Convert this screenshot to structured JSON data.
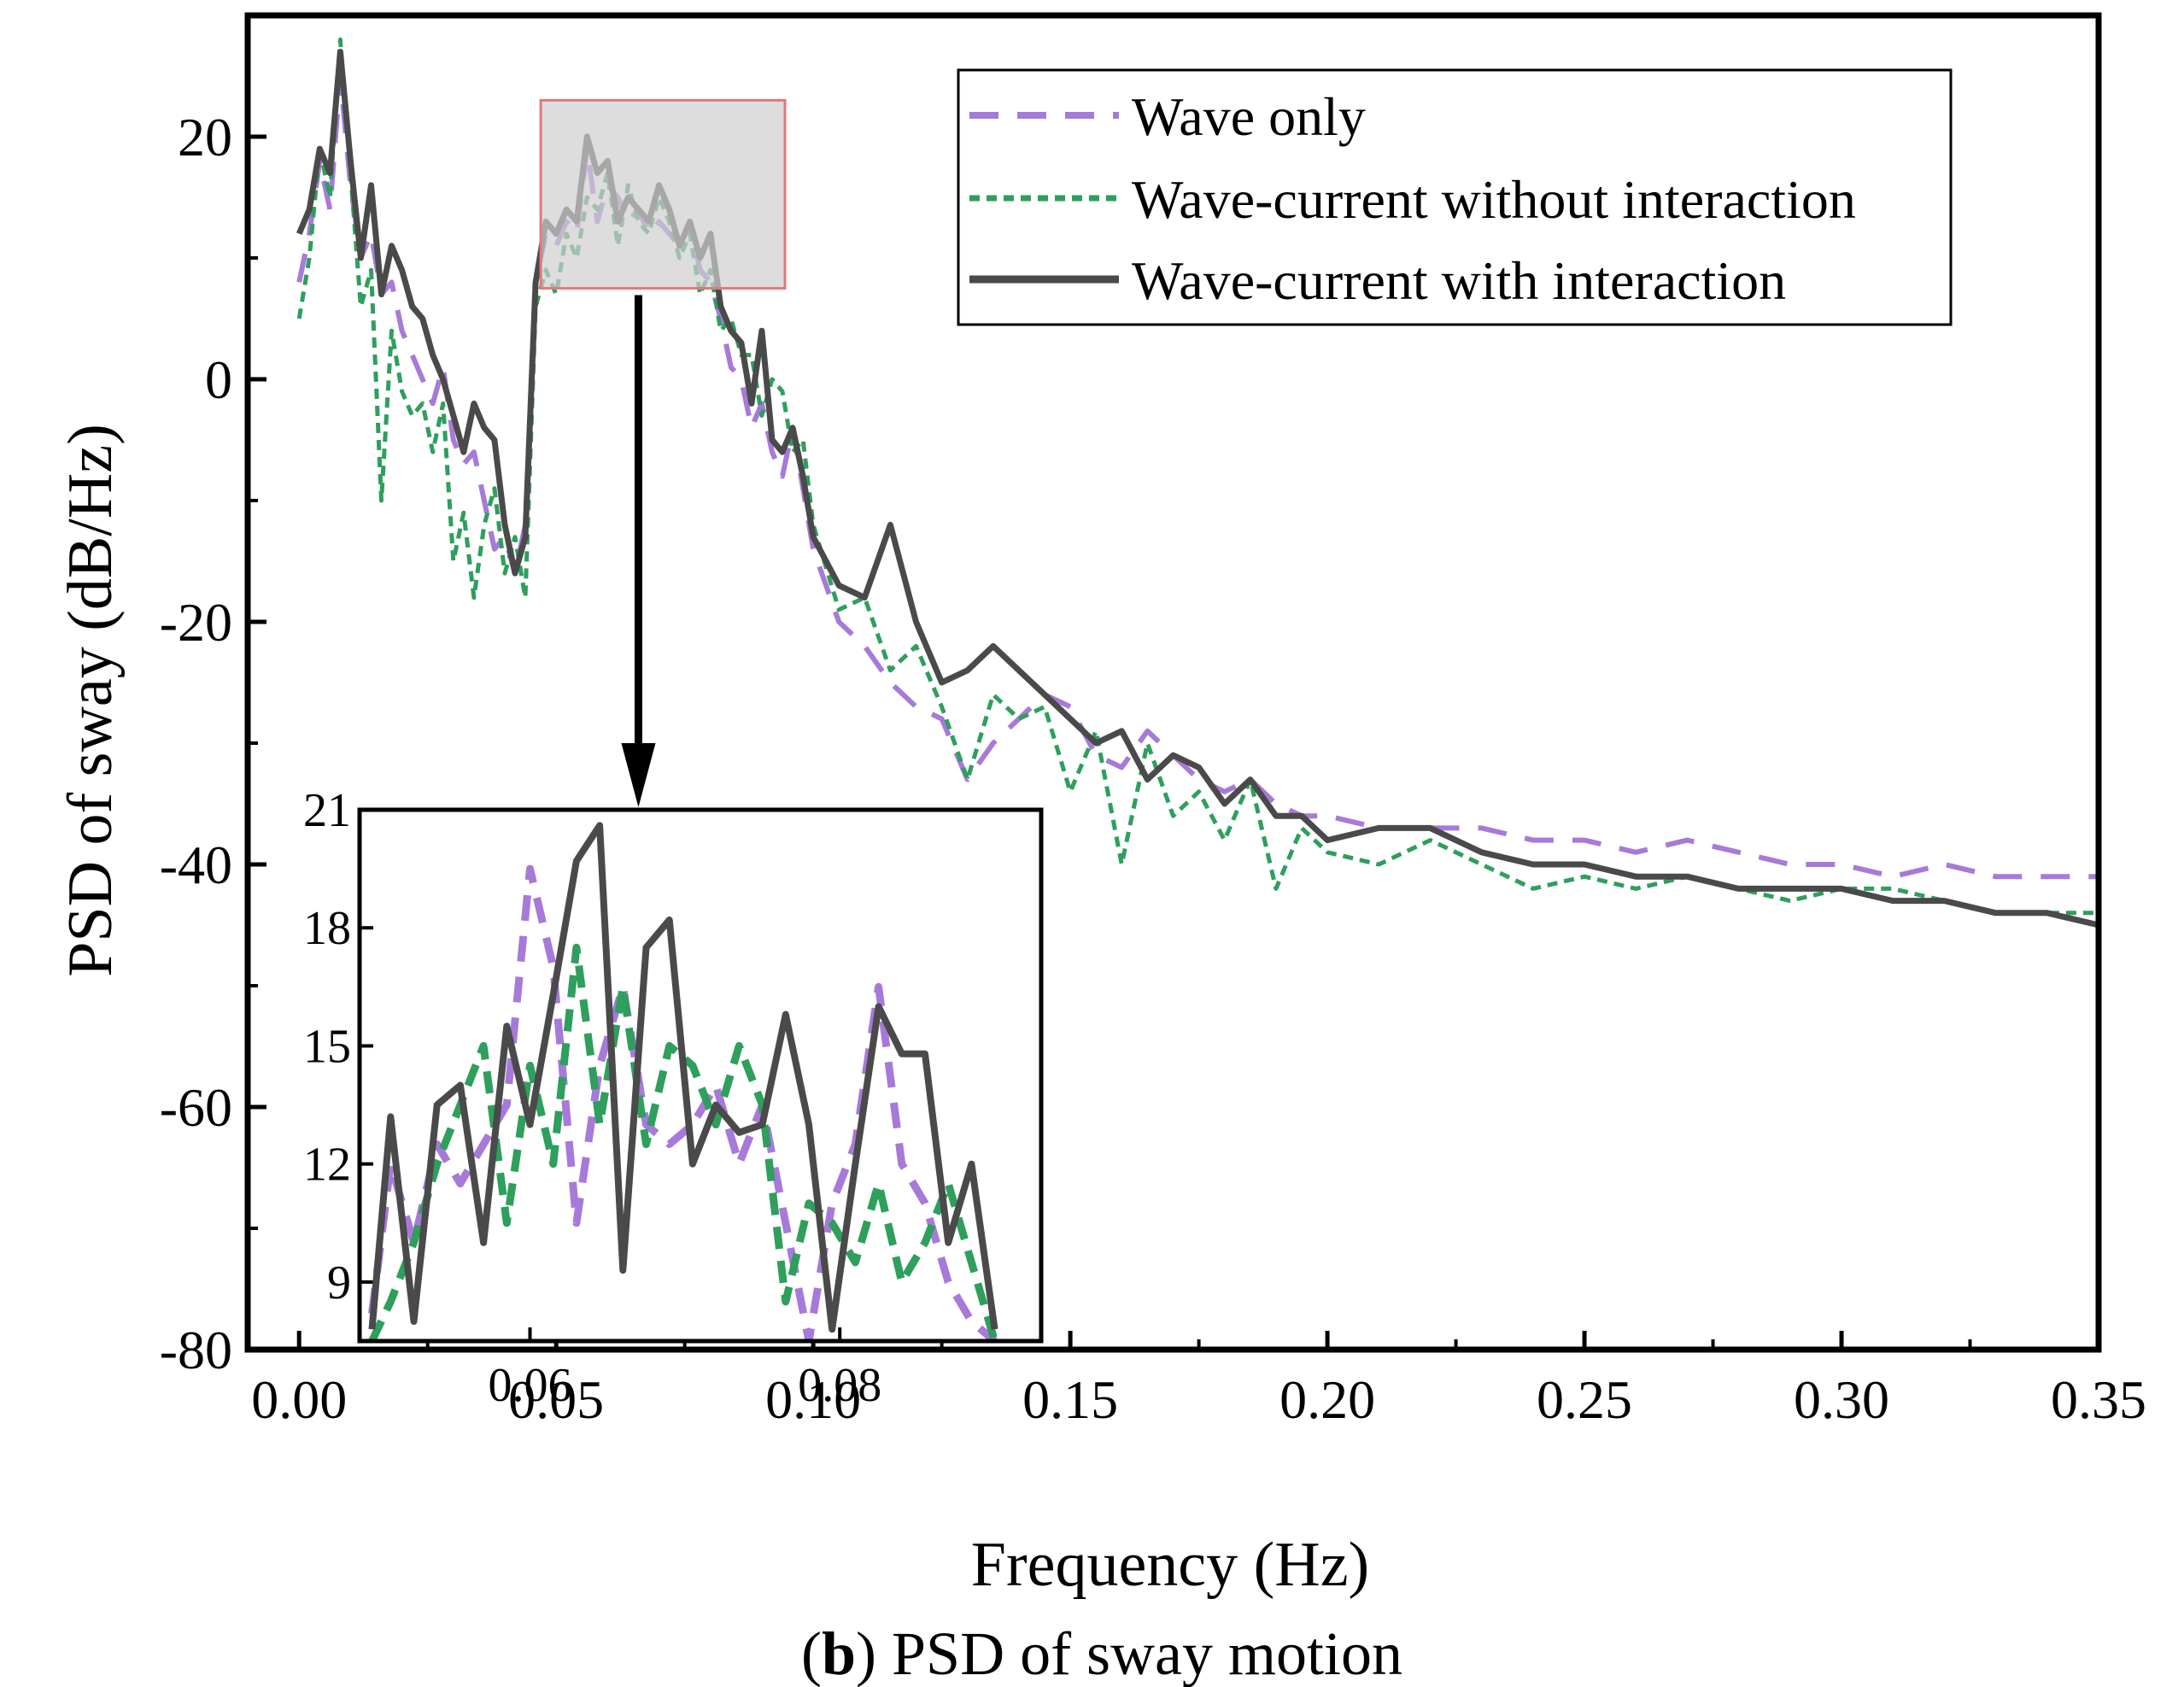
{
  "figure": {
    "caption_letter": "b",
    "caption_text": "PSD of sway motion"
  },
  "chart_data": {
    "type": "line",
    "title": "",
    "xlabel": "Frequency (Hz)",
    "ylabel": "PSD of sway (dB/Hz)",
    "xlim": [
      -0.01,
      0.35
    ],
    "ylim": [
      -80,
      30
    ],
    "x_ticks": [
      0.0,
      0.05,
      0.1,
      0.15,
      0.2,
      0.25,
      0.3,
      0.35
    ],
    "x_tick_labels": [
      "0.00",
      "0.05",
      "0.10",
      "0.15",
      "0.20",
      "0.25",
      "0.30",
      "0.35"
    ],
    "y_ticks": [
      -80,
      -60,
      -40,
      -20,
      0,
      20
    ],
    "y_tick_labels": [
      "-80",
      "-60",
      "-40",
      "-20",
      "0",
      "20"
    ],
    "legend_position": "top-right",
    "series": [
      {
        "name": "Wave only",
        "style": "dashed",
        "color": "#a77ad9",
        "x": [
          0.0,
          0.002,
          0.004,
          0.006,
          0.008,
          0.01,
          0.012,
          0.014,
          0.016,
          0.018,
          0.02,
          0.022,
          0.024,
          0.026,
          0.028,
          0.03,
          0.032,
          0.034,
          0.036,
          0.038,
          0.04,
          0.042,
          0.044,
          0.046,
          0.048,
          0.05,
          0.052,
          0.054,
          0.056,
          0.058,
          0.06,
          0.062,
          0.064,
          0.066,
          0.068,
          0.07,
          0.072,
          0.074,
          0.076,
          0.078,
          0.08,
          0.082,
          0.084,
          0.086,
          0.088,
          0.09,
          0.092,
          0.094,
          0.096,
          0.098,
          0.1,
          0.105,
          0.11,
          0.115,
          0.12,
          0.125,
          0.13,
          0.135,
          0.14,
          0.145,
          0.15,
          0.155,
          0.16,
          0.165,
          0.17,
          0.175,
          0.18,
          0.185,
          0.19,
          0.195,
          0.2,
          0.21,
          0.22,
          0.23,
          0.24,
          0.25,
          0.26,
          0.27,
          0.28,
          0.29,
          0.3,
          0.31,
          0.32,
          0.33,
          0.34,
          0.35
        ],
        "values": [
          8,
          12,
          18,
          14,
          25,
          16,
          10,
          12,
          7,
          8,
          4,
          2,
          0,
          -2,
          1,
          -5,
          -7,
          -6,
          -10,
          -14,
          -13,
          -16,
          -12,
          8,
          12,
          11,
          13,
          12,
          19,
          13,
          16,
          15,
          13,
          14,
          12,
          13,
          12,
          11,
          13,
          9,
          8,
          5,
          1,
          0,
          -4,
          -2,
          -6,
          -8,
          -4,
          -9,
          -14,
          -20,
          -22,
          -25,
          -27,
          -28,
          -33,
          -30,
          -28,
          -26,
          -27,
          -31,
          -32,
          -29,
          -31,
          -33,
          -34,
          -33,
          -35,
          -36,
          -36,
          -37,
          -37,
          -37,
          -38,
          -38,
          -39,
          -38,
          -39,
          -40,
          -40,
          -41,
          -40,
          -41,
          -41,
          -41
        ]
      },
      {
        "name": "Wave-current without interaction",
        "style": "dotted",
        "color": "#2e9f5c",
        "x": [
          0.0,
          0.002,
          0.004,
          0.006,
          0.008,
          0.01,
          0.012,
          0.014,
          0.016,
          0.018,
          0.02,
          0.022,
          0.024,
          0.026,
          0.028,
          0.03,
          0.032,
          0.034,
          0.036,
          0.038,
          0.04,
          0.042,
          0.044,
          0.046,
          0.048,
          0.05,
          0.052,
          0.054,
          0.056,
          0.058,
          0.06,
          0.062,
          0.064,
          0.066,
          0.068,
          0.07,
          0.072,
          0.074,
          0.076,
          0.078,
          0.08,
          0.082,
          0.084,
          0.086,
          0.088,
          0.09,
          0.092,
          0.094,
          0.096,
          0.098,
          0.1,
          0.105,
          0.11,
          0.115,
          0.12,
          0.125,
          0.13,
          0.135,
          0.14,
          0.145,
          0.15,
          0.155,
          0.16,
          0.165,
          0.17,
          0.175,
          0.18,
          0.185,
          0.19,
          0.195,
          0.2,
          0.21,
          0.22,
          0.23,
          0.24,
          0.25,
          0.26,
          0.27,
          0.28,
          0.29,
          0.3,
          0.31,
          0.32,
          0.33,
          0.34,
          0.35
        ],
        "values": [
          5,
          10,
          19,
          15,
          28,
          17,
          6,
          9,
          -10,
          4,
          -1,
          -3,
          -2,
          -6,
          -2,
          -15,
          -11,
          -18,
          -12,
          -9,
          -16,
          -13,
          -18,
          6,
          9,
          7,
          12,
          10,
          15,
          14,
          17,
          11,
          16,
          13,
          12,
          15,
          13,
          10,
          12,
          7,
          9,
          4,
          5,
          2,
          2,
          -3,
          0,
          -1,
          -6,
          -5,
          -12,
          -19,
          -18,
          -24,
          -22,
          -27,
          -33,
          -26,
          -28,
          -27,
          -34,
          -29,
          -40,
          -30,
          -36,
          -34,
          -38,
          -33,
          -42,
          -37,
          -39,
          -40,
          -38,
          -40,
          -42,
          -41,
          -42,
          -41,
          -42,
          -43,
          -42,
          -42,
          -43,
          -44,
          -44,
          -44
        ]
      },
      {
        "name": "Wave-current with interaction",
        "style": "solid",
        "color": "#4a4a4a",
        "x": [
          0.0,
          0.002,
          0.004,
          0.006,
          0.008,
          0.01,
          0.012,
          0.014,
          0.016,
          0.018,
          0.02,
          0.022,
          0.024,
          0.026,
          0.028,
          0.03,
          0.032,
          0.034,
          0.036,
          0.038,
          0.04,
          0.042,
          0.044,
          0.046,
          0.048,
          0.05,
          0.052,
          0.054,
          0.056,
          0.058,
          0.06,
          0.062,
          0.064,
          0.066,
          0.068,
          0.07,
          0.072,
          0.074,
          0.076,
          0.078,
          0.08,
          0.082,
          0.084,
          0.086,
          0.088,
          0.09,
          0.092,
          0.094,
          0.096,
          0.098,
          0.1,
          0.105,
          0.11,
          0.115,
          0.12,
          0.125,
          0.13,
          0.135,
          0.14,
          0.145,
          0.15,
          0.155,
          0.16,
          0.165,
          0.17,
          0.175,
          0.18,
          0.185,
          0.19,
          0.195,
          0.2,
          0.21,
          0.22,
          0.23,
          0.24,
          0.25,
          0.26,
          0.27,
          0.28,
          0.29,
          0.3,
          0.31,
          0.32,
          0.33,
          0.34,
          0.35
        ],
        "values": [
          12,
          14,
          19,
          17,
          27,
          18,
          10,
          16,
          7,
          11,
          9,
          6,
          5,
          2,
          0,
          -3,
          -6,
          -2,
          -4,
          -5,
          -12,
          -16,
          -13,
          8,
          13,
          12,
          14,
          13,
          20,
          17,
          18,
          13,
          15,
          14,
          13,
          16,
          14,
          11,
          13,
          10,
          12,
          6,
          4,
          3,
          -2,
          4,
          -5,
          -6,
          -4,
          -8,
          -13,
          -17,
          -18,
          -12,
          -20,
          -25,
          -24,
          -22,
          -24,
          -26,
          -28,
          -30,
          -29,
          -33,
          -31,
          -32,
          -35,
          -33,
          -36,
          -36,
          -38,
          -37,
          -37,
          -39,
          -40,
          -40,
          -41,
          -41,
          -42,
          -42,
          -42,
          -43,
          -43,
          -44,
          -44,
          -45
        ]
      }
    ],
    "inset": {
      "xlim": [
        0.049,
        0.093
      ],
      "ylim": [
        7.5,
        21
      ],
      "x_ticks": [
        0.06,
        0.08
      ],
      "x_tick_labels": [
        "0.06",
        "0.08"
      ],
      "y_ticks": [
        9,
        12,
        15,
        18,
        21
      ],
      "y_tick_labels": [
        "9",
        "12",
        "15",
        "18",
        "21"
      ],
      "series": [
        {
          "name": "Wave only",
          "x": [
            0.0498,
            0.051,
            0.0525,
            0.054,
            0.0555,
            0.057,
            0.0585,
            0.06,
            0.0615,
            0.063,
            0.0645,
            0.066,
            0.0675,
            0.069,
            0.0705,
            0.072,
            0.0735,
            0.075,
            0.0765,
            0.078,
            0.0795,
            0.081,
            0.0825,
            0.084,
            0.0855,
            0.087,
            0.0885,
            0.09
          ],
          "values": [
            8.2,
            12.0,
            10.0,
            12.5,
            11.5,
            12.5,
            13.5,
            19.5,
            17.0,
            10.5,
            14.5,
            16.5,
            13.0,
            12.5,
            13.0,
            14.0,
            12.0,
            13.5,
            10.5,
            7.5,
            11.0,
            12.5,
            16.5,
            12.0,
            11.0,
            9.0,
            8.0,
            7.5
          ]
        },
        {
          "name": "Wave-current without interaction",
          "x": [
            0.0498,
            0.051,
            0.0525,
            0.054,
            0.0555,
            0.057,
            0.0585,
            0.06,
            0.0615,
            0.063,
            0.0645,
            0.066,
            0.0675,
            0.069,
            0.0705,
            0.072,
            0.0735,
            0.075,
            0.0765,
            0.078,
            0.0795,
            0.081,
            0.0825,
            0.084,
            0.0855,
            0.087,
            0.0885,
            0.09
          ],
          "values": [
            7.5,
            8.5,
            10.0,
            12.0,
            13.5,
            15.0,
            10.5,
            14.5,
            12.0,
            17.5,
            13.0,
            16.5,
            12.5,
            15.0,
            14.5,
            13.0,
            15.0,
            13.5,
            8.5,
            11.0,
            10.5,
            9.5,
            11.5,
            9.0,
            10.0,
            11.5,
            9.5,
            7.5
          ]
        },
        {
          "name": "Wave-current with interaction",
          "x": [
            0.0498,
            0.051,
            0.0525,
            0.054,
            0.0555,
            0.057,
            0.0585,
            0.06,
            0.0615,
            0.063,
            0.0645,
            0.066,
            0.0675,
            0.069,
            0.0705,
            0.072,
            0.0735,
            0.075,
            0.0765,
            0.078,
            0.0795,
            0.081,
            0.0825,
            0.084,
            0.0855,
            0.087,
            0.0885,
            0.09
          ],
          "values": [
            7.8,
            13.2,
            8.0,
            13.5,
            14.0,
            10.0,
            15.5,
            13.0,
            16.3,
            19.7,
            20.6,
            9.3,
            17.5,
            18.2,
            12.0,
            13.5,
            12.8,
            13.0,
            15.8,
            13.0,
            7.8,
            12.0,
            16.0,
            14.8,
            14.8,
            10.0,
            12.0,
            7.8
          ]
        }
      ]
    }
  }
}
